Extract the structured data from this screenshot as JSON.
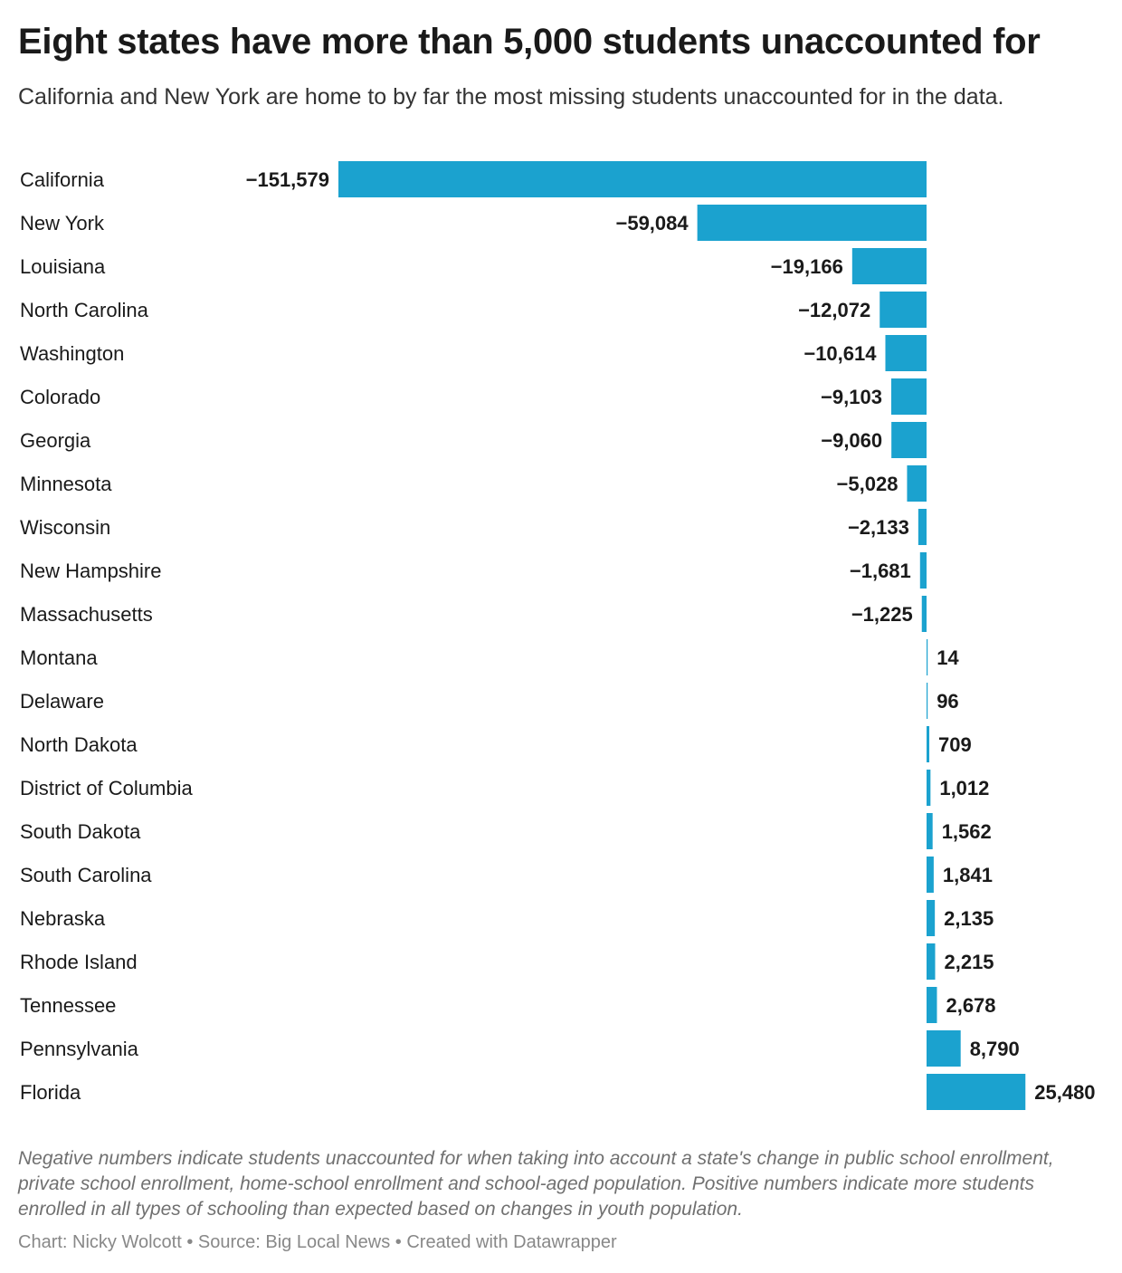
{
  "header": {
    "title": "Eight states have more than 5,000 students unaccounted for",
    "subtitle": "California and New York are home to by far the most missing students unaccounted for in the data."
  },
  "footer": {
    "notes": "Negative numbers indicate students unaccounted for when taking into account a state's change in public school enrollment, private school enrollment, home-school enrollment and school-aged population. Positive numbers indicate more students enrolled in all types of schooling than expected based on changes in youth population.",
    "credits": "Chart: Nicky Wolcott • Source: Big Local News • Created with Datawrapper"
  },
  "chart_data": {
    "type": "bar",
    "orientation": "horizontal",
    "bar_color": "#1ba2cf",
    "categories": [
      "California",
      "New York",
      "Louisiana",
      "North Carolina",
      "Washington",
      "Colorado",
      "Georgia",
      "Minnesota",
      "Wisconsin",
      "New Hampshire",
      "Massachusetts",
      "Montana",
      "Delaware",
      "North Dakota",
      "District of Columbia",
      "South Dakota",
      "South Carolina",
      "Nebraska",
      "Rhode Island",
      "Tennessee",
      "Pennsylvania",
      "Florida"
    ],
    "values": [
      -151579,
      -59084,
      -19166,
      -12072,
      -10614,
      -9103,
      -9060,
      -5028,
      -2133,
      -1681,
      -1225,
      14,
      96,
      709,
      1012,
      1562,
      1841,
      2135,
      2215,
      2678,
      8790,
      25480
    ],
    "value_labels": [
      "−151,579",
      "−59,084",
      "−19,166",
      "−12,072",
      "−10,614",
      "−9,103",
      "−9,060",
      "−5,028",
      "−2,133",
      "−1,681",
      "−1,225",
      "14",
      "96",
      "709",
      "1,012",
      "1,562",
      "1,841",
      "2,135",
      "2,215",
      "2,678",
      "8,790",
      "25,480"
    ],
    "title": "Eight states have more than 5,000 students unaccounted for",
    "xlabel": "",
    "ylabel": "",
    "grid": false,
    "legend": "none"
  }
}
